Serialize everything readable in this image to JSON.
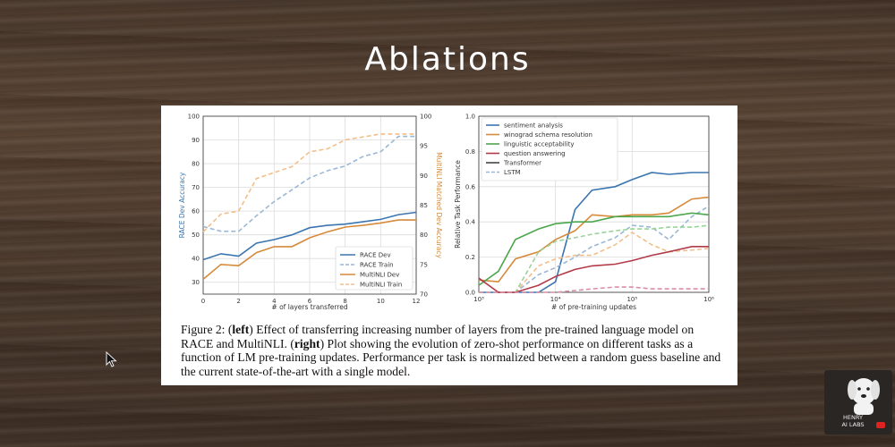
{
  "slide": {
    "title": "Ablations"
  },
  "chart_data": [
    {
      "type": "line",
      "title": "",
      "xlabel": "# of layers transferred",
      "ylabel": "RACE Dev Accuracy",
      "y2label": "MultiNLI Matched Dev Accuracy",
      "xlim": [
        0,
        12
      ],
      "ylim": [
        25,
        100
      ],
      "y2lim": [
        70,
        100
      ],
      "xticks": [
        "0",
        "2",
        "4",
        "6",
        "8",
        "10",
        "12"
      ],
      "yticks": [
        "30",
        "40",
        "50",
        "60",
        "70",
        "80",
        "90",
        "100"
      ],
      "y2ticks": [
        "70",
        "75",
        "80",
        "85",
        "90",
        "95",
        "100"
      ],
      "legend_position": "lower-right",
      "x": [
        0,
        1,
        2,
        3,
        4,
        5,
        6,
        7,
        8,
        9,
        10,
        11,
        12
      ],
      "series": [
        {
          "name": "RACE Dev",
          "axis": "left",
          "style": "solid",
          "color": "#3b75af",
          "values": [
            39.5,
            42,
            41,
            46.5,
            48,
            50,
            53,
            54,
            54.5,
            55.5,
            56.5,
            58.5,
            59.5
          ]
        },
        {
          "name": "RACE Train",
          "axis": "left",
          "style": "dashed",
          "color": "#9ab7d6",
          "values": [
            53.5,
            51.5,
            51.5,
            58,
            64,
            69,
            74,
            77,
            79,
            83,
            85,
            91.5,
            91.5
          ]
        },
        {
          "name": "MultiNLI Dev",
          "axis": "right",
          "style": "solid",
          "color": "#d68a3a",
          "values": [
            72.5,
            75,
            74.8,
            77,
            78,
            78,
            79.5,
            80.5,
            81.3,
            81.6,
            82,
            82.5,
            82.5
          ]
        },
        {
          "name": "MultiNLI Train",
          "axis": "right",
          "style": "dashed",
          "color": "#f2bf8c",
          "values": [
            80.5,
            83.5,
            84,
            89.5,
            90.5,
            91.5,
            94,
            94.5,
            96,
            96.5,
            97,
            97,
            97
          ]
        }
      ]
    },
    {
      "type": "line",
      "title": "",
      "xlabel": "# of pre-training updates",
      "ylabel": "Relative Task Performance",
      "xscale": "log",
      "xlim": [
        1000,
        1000000
      ],
      "ylim": [
        0,
        1.0
      ],
      "xticks": [
        "10³",
        "10⁴",
        "10⁵",
        "10⁶"
      ],
      "yticks": [
        "0.0",
        "0.2",
        "0.4",
        "0.6",
        "0.8",
        "1.0"
      ],
      "legend_position": "top-left",
      "x": [
        1000,
        1800,
        3000,
        6000,
        10000,
        18000,
        30000,
        60000,
        100000,
        180000,
        300000,
        600000,
        1000000
      ],
      "series": [
        {
          "name": "sentiment analysis",
          "style": "solid",
          "color": "#3b75af",
          "values": [
            0.0,
            0.0,
            0.0,
            0.0,
            0.06,
            0.47,
            0.58,
            0.6,
            0.64,
            0.68,
            0.67,
            0.68,
            0.68
          ]
        },
        {
          "name": "sentiment analysis LSTM",
          "style": "dashed",
          "color": "#9ab7d6",
          "values": [
            0.0,
            0.0,
            0.0,
            0.1,
            0.14,
            0.2,
            0.26,
            0.31,
            0.38,
            0.37,
            0.3,
            0.43,
            0.49
          ]
        },
        {
          "name": "winograd schema resolution",
          "style": "solid",
          "color": "#d68a3a",
          "values": [
            0.07,
            0.06,
            0.19,
            0.23,
            0.3,
            0.35,
            0.44,
            0.43,
            0.44,
            0.44,
            0.45,
            0.53,
            0.54
          ]
        },
        {
          "name": "winograd schema resolution LSTM",
          "style": "dashed",
          "color": "#f2bf8c",
          "values": [
            0.0,
            0.0,
            0.0,
            0.15,
            0.19,
            0.21,
            0.21,
            0.27,
            0.34,
            0.27,
            0.23,
            0.24,
            0.25
          ]
        },
        {
          "name": "linguistic acceptability",
          "style": "solid",
          "color": "#4ca64c",
          "values": [
            0.04,
            0.12,
            0.3,
            0.36,
            0.39,
            0.4,
            0.4,
            0.43,
            0.43,
            0.43,
            0.43,
            0.45,
            0.44
          ]
        },
        {
          "name": "linguistic acceptability LSTM",
          "style": "dashed",
          "color": "#9ad39a",
          "values": [
            0.0,
            0.0,
            0.0,
            0.23,
            0.29,
            0.31,
            0.33,
            0.35,
            0.36,
            0.36,
            0.37,
            0.37,
            0.38
          ]
        },
        {
          "name": "question answering",
          "style": "solid",
          "color": "#b23a48",
          "values": [
            0.08,
            0.0,
            0.0,
            0.04,
            0.09,
            0.13,
            0.15,
            0.16,
            0.18,
            0.21,
            0.23,
            0.26,
            0.26
          ]
        },
        {
          "name": "question answering LSTM",
          "style": "dashed",
          "color": "#e08aa6",
          "values": [
            0.0,
            0.0,
            0.0,
            0.0,
            0.0,
            0.01,
            0.02,
            0.03,
            0.03,
            0.02,
            0.02,
            0.02,
            0.02
          ]
        }
      ],
      "legend": [
        {
          "label": "sentiment analysis",
          "color": "#3b75af",
          "style": "solid"
        },
        {
          "label": "winograd schema resolution",
          "color": "#d68a3a",
          "style": "solid"
        },
        {
          "label": "linguistic acceptability",
          "color": "#4ca64c",
          "style": "solid"
        },
        {
          "label": "question answering",
          "color": "#b23a48",
          "style": "solid"
        },
        {
          "label": "Transformer",
          "color": "#444444",
          "style": "solid"
        },
        {
          "label": "LSTM",
          "color": "#9ab7d6",
          "style": "dashed"
        }
      ]
    }
  ],
  "caption": {
    "fig_label": "Figure 2:",
    "left_open": "(",
    "left_word": "left",
    "left_close": ")",
    "text1": " Effect of transferring increasing number of layers from the pre-trained language model on RACE and MultiNLI. ",
    "right_open": "(",
    "right_word": "right",
    "right_close": ")",
    "text2": " Plot showing the evolution of zero-shot performance on different tasks as a function of LM pre-training updates. Performance per task is normalized between a random guess baseline and the current state-of-the-art with a single model."
  },
  "logo": {
    "line1": "HENRY",
    "line2": "AI LABS"
  },
  "icons": {
    "cursor": "mouse-pointer-icon",
    "dog": "dog-icon",
    "youtube": "youtube-icon"
  }
}
